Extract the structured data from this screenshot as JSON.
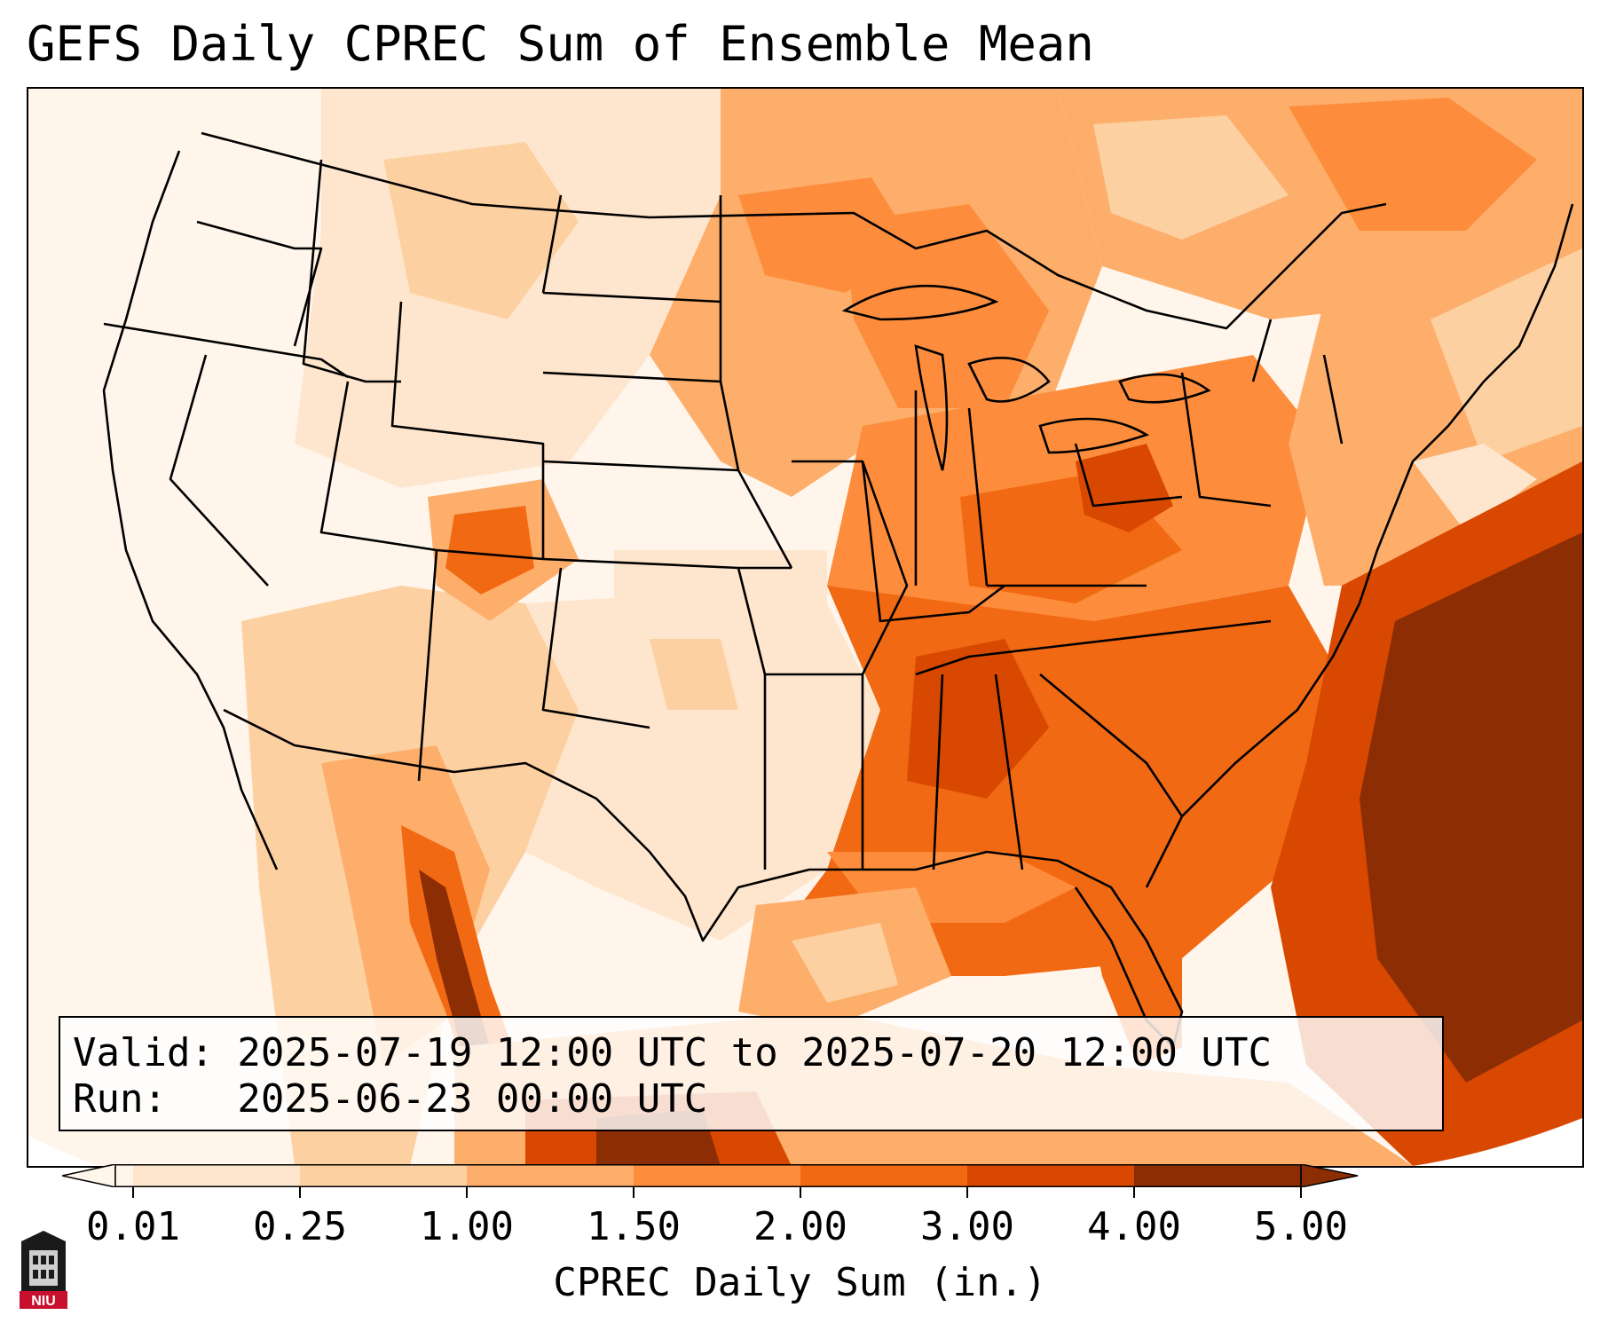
{
  "title": "GEFS Daily CPREC Sum of Ensemble Mean",
  "info": {
    "valid_line": "Valid: 2025-07-19 12:00 UTC to 2025-07-20 12:00 UTC",
    "run_line": "Run:   2025-06-23 00:00 UTC"
  },
  "colorbar": {
    "label": "CPREC Daily Sum (in.)",
    "ticks": [
      "0.01",
      "0.25",
      "1.00",
      "1.50",
      "2.00",
      "3.00",
      "4.00",
      "5.00"
    ],
    "colors": [
      "#fff5eb",
      "#fee6ce",
      "#fdd0a2",
      "#fdae6b",
      "#fd8d3c",
      "#f16913",
      "#d94801",
      "#8c2d04"
    ],
    "extend": "both"
  },
  "map": {
    "region": "Contiguous United States",
    "colors": {
      "boundary": "#000000",
      "lowest": "#fff5eb",
      "low": "#fee6ce",
      "moderate": "#fdd0a2",
      "medium": "#fdae6b",
      "high": "#fd8d3c",
      "higher": "#f16913",
      "very_high": "#d94801",
      "max": "#8c2d04"
    }
  },
  "logo": {
    "text": "NIU",
    "icon": "niu-logo-icon"
  }
}
